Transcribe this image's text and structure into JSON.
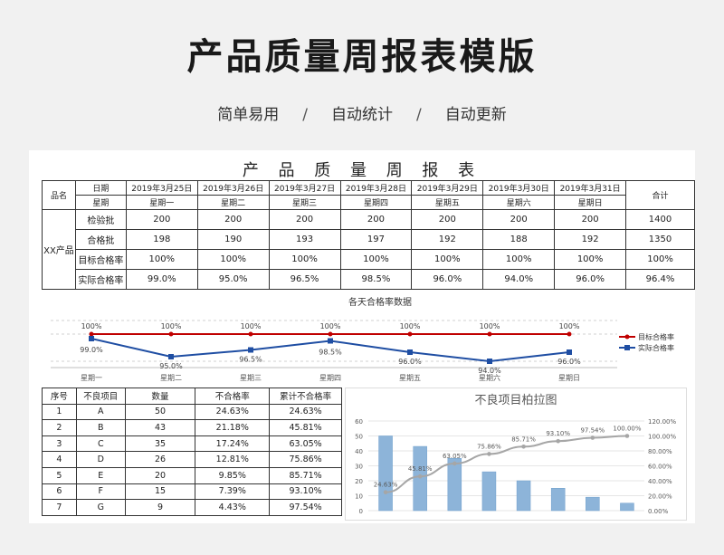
{
  "page": {
    "title": "产品质量周报表模版",
    "subtitle": [
      "简单易用",
      "自动统计",
      "自动更新"
    ],
    "sep": "/"
  },
  "report": {
    "title": "产 品 质 量 周 报 表",
    "col_product": "品名",
    "col_date": "日期",
    "col_week": "星期",
    "col_total": "合计",
    "product": "XX产品",
    "dates": [
      "2019年3月25日",
      "2019年3月26日",
      "2019年3月27日",
      "2019年3月28日",
      "2019年3月29日",
      "2019年3月30日",
      "2019年3月31日"
    ],
    "weekdays": [
      "星期一",
      "星期二",
      "星期三",
      "星期四",
      "星期五",
      "星期六",
      "星期日"
    ],
    "rows": [
      {
        "label": "检验批",
        "values": [
          "200",
          "200",
          "200",
          "200",
          "200",
          "200",
          "200"
        ],
        "total": "1400"
      },
      {
        "label": "合格批",
        "values": [
          "198",
          "190",
          "193",
          "197",
          "192",
          "188",
          "192"
        ],
        "total": "1350"
      },
      {
        "label": "目标合格率",
        "values": [
          "100%",
          "100%",
          "100%",
          "100%",
          "100%",
          "100%",
          "100%"
        ],
        "total": "100%"
      },
      {
        "label": "实际合格率",
        "values": [
          "99.0%",
          "95.0%",
          "96.5%",
          "98.5%",
          "96.0%",
          "94.0%",
          "96.0%"
        ],
        "total": "96.4%"
      }
    ]
  },
  "defects": {
    "headers": [
      "序号",
      "不良项目",
      "数量",
      "不合格率",
      "累计不合格率"
    ],
    "rows": [
      [
        "1",
        "A",
        "50",
        "24.63%",
        "24.63%"
      ],
      [
        "2",
        "B",
        "43",
        "21.18%",
        "45.81%"
      ],
      [
        "3",
        "C",
        "35",
        "17.24%",
        "63.05%"
      ],
      [
        "4",
        "D",
        "26",
        "12.81%",
        "75.86%"
      ],
      [
        "5",
        "E",
        "20",
        "9.85%",
        "85.71%"
      ],
      [
        "6",
        "F",
        "15",
        "7.39%",
        "93.10%"
      ],
      [
        "7",
        "G",
        "9",
        "4.43%",
        "97.54%"
      ]
    ]
  },
  "chart_data": [
    {
      "type": "line",
      "title": "各天合格率数据",
      "categories": [
        "星期一",
        "星期二",
        "星期三",
        "星期四",
        "星期五",
        "星期六",
        "星期日"
      ],
      "series": [
        {
          "name": "目标合格率",
          "values": [
            100,
            100,
            100,
            100,
            100,
            100,
            100
          ],
          "labels": [
            "100%",
            "100%",
            "100%",
            "100%",
            "100%",
            "100%",
            "100%"
          ],
          "color": "#c00000"
        },
        {
          "name": "实际合格率",
          "values": [
            99.0,
            95.0,
            96.5,
            98.5,
            96.0,
            94.0,
            96.0
          ],
          "labels": [
            "99.0%",
            "95.0%",
            "96.5%",
            "98.5%",
            "96.0%",
            "94.0%",
            "96.0%"
          ],
          "color": "#1f4ea3"
        }
      ],
      "legend": "right",
      "grid": true
    },
    {
      "type": "bar",
      "title": "不良项目柏拉图",
      "categories": [
        "A",
        "B",
        "C",
        "D",
        "E",
        "F",
        "G",
        "H"
      ],
      "values": [
        50,
        43,
        35,
        26,
        20,
        15,
        9,
        5
      ],
      "ylim": [
        0,
        60
      ],
      "yticks": [
        "0",
        "10",
        "20",
        "30",
        "40",
        "50",
        "60"
      ],
      "y2ticks": [
        "0.00%",
        "20.00%",
        "40.00%",
        "60.00%",
        "80.00%",
        "100.00%",
        "120.00%"
      ],
      "cumulative": [
        24.63,
        45.81,
        63.05,
        75.86,
        85.71,
        93.1,
        97.54,
        100.0
      ],
      "cumulative_labels": [
        "24.63%",
        "45.81%",
        "63.05%",
        "75.86%",
        "85.71%",
        "93.10%",
        "97.54%",
        "100.00%"
      ],
      "y2lim": [
        0,
        120
      ],
      "bar_color": "#8db4d9",
      "line_color": "#a6a6a6",
      "grid": true
    }
  ]
}
